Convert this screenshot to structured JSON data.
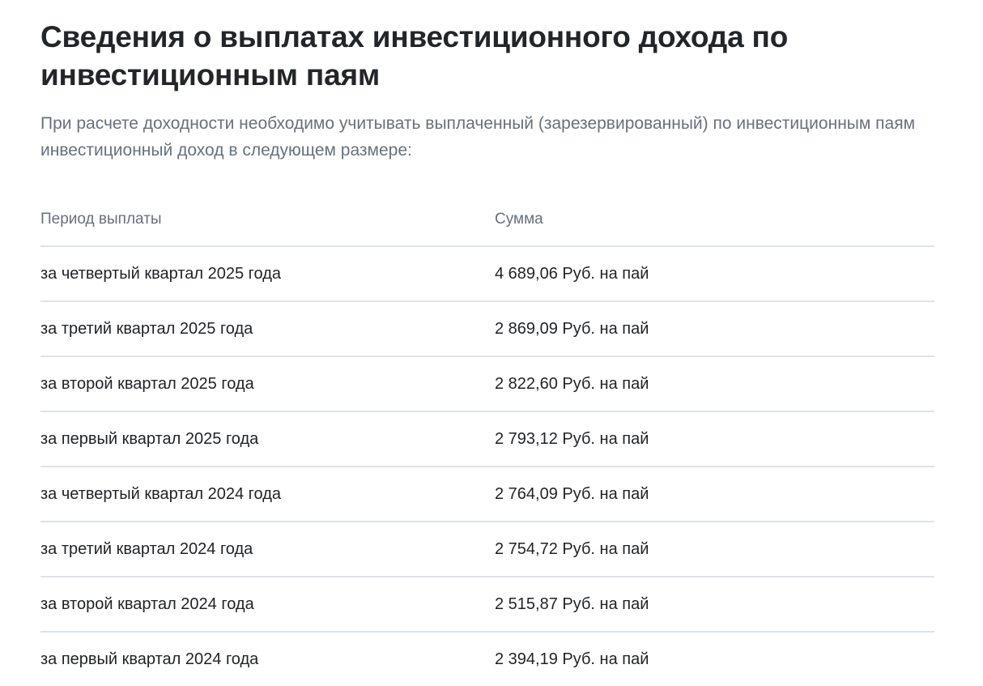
{
  "title": "Сведения о выплатах инвестиционного дохода по инвестиционным паям",
  "lead": "При расчете доходности необходимо учитывать выплаченный (зарезервированный) по инвестиционным паям инвестиционный доход в следующем размере:",
  "table": {
    "headers": [
      "Период выплаты",
      "Сумма"
    ],
    "rows": [
      [
        "за четвертый квартал 2025 года",
        "4 689,06 Руб. на пай"
      ],
      [
        "за третий квартал 2025 года",
        "2 869,09 Руб. на пай"
      ],
      [
        "за второй квартал 2025 года",
        "2 822,60 Руб. на пай"
      ],
      [
        "за первый квартал 2025 года",
        "2 793,12 Руб. на пай"
      ],
      [
        "за четвертый квартал 2024 года",
        "2 764,09 Руб. на пай"
      ],
      [
        "за третий квартал 2024 года",
        "2 754,72 Руб. на пай"
      ],
      [
        "за второй квартал 2024 года",
        "2 515,87 Руб. на пай"
      ],
      [
        "за первый квартал 2024 года",
        "2 394,19 Руб. на пай"
      ]
    ]
  }
}
